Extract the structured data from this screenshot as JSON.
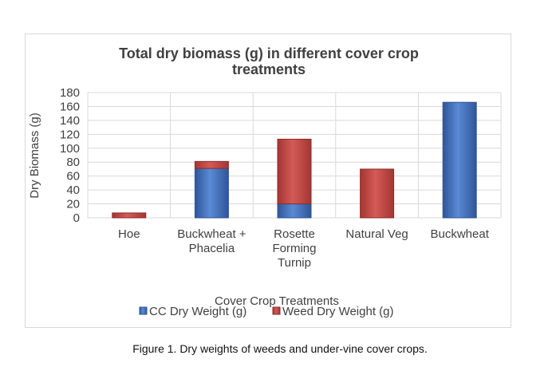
{
  "caption": "Figure 1. Dry weights of weeds and under-vine cover crops.",
  "chart_data": {
    "type": "bar",
    "stacked": true,
    "title_lines": [
      "Total dry biomass (g) in different cover crop",
      "treatments"
    ],
    "xlabel": "Cover Crop Treatments",
    "ylabel": "Dry Biomass (g)",
    "ylim": [
      0,
      180
    ],
    "yticks": [
      0,
      20,
      40,
      60,
      80,
      100,
      120,
      140,
      160,
      180
    ],
    "grid": true,
    "legend_position": "bottom",
    "categories": [
      [
        "Hoe"
      ],
      [
        "Buckwheat +",
        "Phacelia"
      ],
      [
        "Rosette",
        "Forming",
        "Turnip"
      ],
      [
        "Natural Veg"
      ],
      [
        "Buckwheat"
      ]
    ],
    "series": [
      {
        "name": "CC Dry Weight (g)",
        "color": "#4472c4",
        "values": [
          0,
          71,
          20,
          0,
          166
        ]
      },
      {
        "name": "Weed Dry Weight (g)",
        "color": "#c0504d",
        "values": [
          7,
          10,
          93,
          70,
          0
        ]
      }
    ]
  }
}
